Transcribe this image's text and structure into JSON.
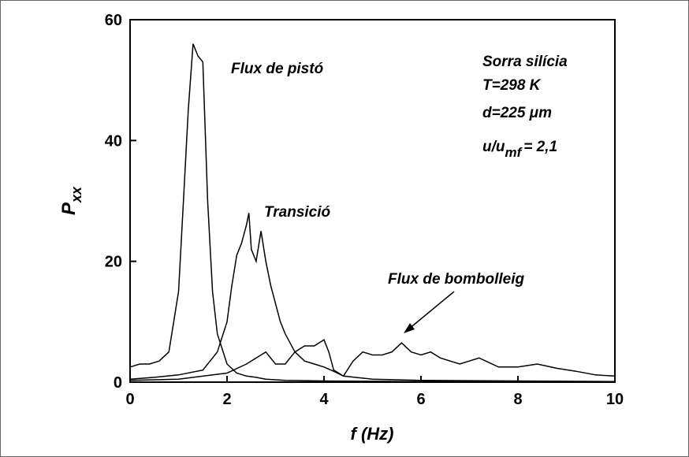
{
  "chart_data": {
    "type": "line",
    "xlabel": "f (Hz)",
    "ylabel": "P",
    "ylabel_subscript": "xx",
    "xlim": [
      0,
      10
    ],
    "ylim": [
      0,
      60
    ],
    "xticks": [
      0,
      2,
      4,
      6,
      8,
      10
    ],
    "yticks": [
      0,
      20,
      40,
      60
    ],
    "annotations": [
      "Sorra silícia",
      "T=298 K",
      "d=225 μm"
    ],
    "ratio": {
      "text": "u/u",
      "subscript": "mf",
      "value_text": "= 2,1"
    },
    "series": [
      {
        "name": "Flux de pistó",
        "color": "#000000",
        "x": [
          0,
          0.2,
          0.4,
          0.6,
          0.8,
          1.0,
          1.1,
          1.2,
          1.3,
          1.4,
          1.5,
          1.6,
          1.7,
          1.8,
          2.0,
          2.2,
          2.4,
          2.6,
          2.8,
          3.2,
          4,
          5,
          6,
          8,
          10
        ],
        "values": [
          2.5,
          3,
          3,
          3.5,
          5,
          15,
          30,
          45,
          56,
          54,
          53,
          30,
          15,
          8,
          3,
          1.5,
          1,
          0.8,
          0.5,
          0.3,
          0.2,
          0.15,
          0.1,
          0.1,
          0.1
        ]
      },
      {
        "name": "Transició",
        "color": "#000000",
        "x": [
          0,
          0.5,
          1,
          1.5,
          1.8,
          2.0,
          2.1,
          2.2,
          2.3,
          2.4,
          2.45,
          2.5,
          2.6,
          2.7,
          2.8,
          2.9,
          3.0,
          3.1,
          3.2,
          3.4,
          3.6,
          3.8,
          4.0,
          4.2,
          4.4,
          5,
          6,
          8,
          10
        ],
        "values": [
          0.5,
          0.8,
          1.2,
          2,
          5,
          10,
          16,
          21,
          23,
          26,
          28,
          22,
          20,
          25,
          20,
          16,
          13,
          10,
          8,
          5,
          3.5,
          3,
          2.5,
          1.8,
          1,
          0.5,
          0.3,
          0.2,
          0.1
        ]
      },
      {
        "name": "Flux de bombolleig",
        "color": "#000000",
        "x": [
          0,
          1,
          2,
          2.4,
          2.7,
          2.8,
          3,
          3.2,
          3.4,
          3.6,
          3.8,
          4,
          4.1,
          4.2,
          4.4,
          4.6,
          4.8,
          5,
          5.2,
          5.4,
          5.6,
          5.8,
          6,
          6.2,
          6.4,
          6.8,
          7.2,
          7.6,
          8,
          8.4,
          8.8,
          9.2,
          9.6,
          10
        ],
        "values": [
          0.3,
          0.5,
          1.5,
          3,
          4.5,
          5,
          3,
          3,
          5,
          6,
          6,
          7,
          5,
          2,
          1,
          3.5,
          5,
          4.5,
          4.5,
          5,
          6.5,
          5,
          4.5,
          5,
          4,
          3,
          4,
          2.5,
          2.5,
          3,
          2.3,
          1.8,
          1.2,
          1.0
        ]
      }
    ]
  }
}
